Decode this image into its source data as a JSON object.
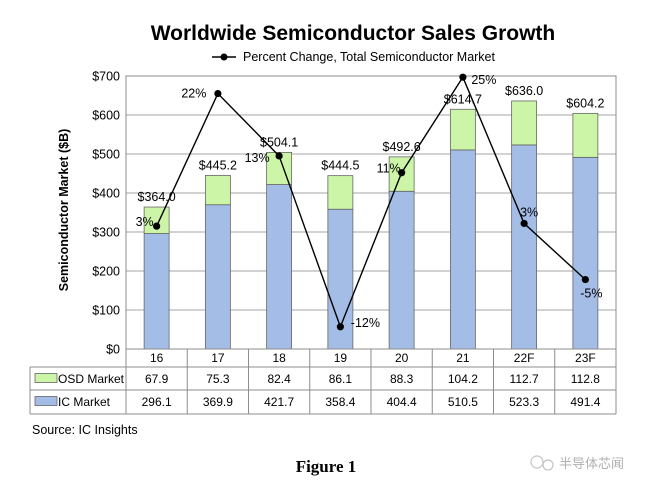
{
  "chart_data": {
    "type": "bar",
    "stacked": true,
    "title": "Worldwide Semiconductor Sales Growth",
    "ylabel": "Semiconductor Market ($B)",
    "xlabel": "",
    "ylim": [
      0,
      700
    ],
    "yticks": [
      0,
      100,
      200,
      300,
      400,
      500,
      600,
      700
    ],
    "ytick_labels": [
      "$0",
      "$100",
      "$200",
      "$300",
      "$400",
      "$500",
      "$600",
      "$700"
    ],
    "grid": "horizontal",
    "categories": [
      "16",
      "17",
      "18",
      "19",
      "20",
      "21",
      "22F",
      "23F"
    ],
    "series": [
      {
        "name": "IC Market",
        "color": "#a4bde6",
        "values": [
          296.1,
          369.9,
          421.7,
          358.4,
          404.4,
          510.5,
          523.3,
          491.4
        ]
      },
      {
        "name": "OSD Market",
        "color": "#ccf5a8",
        "values": [
          67.9,
          75.3,
          82.4,
          86.1,
          88.3,
          104.2,
          112.7,
          112.8
        ]
      }
    ],
    "totals": [
      364.0,
      445.2,
      504.1,
      444.5,
      492.6,
      614.7,
      636.0,
      604.2
    ],
    "total_labels": [
      "$364.0",
      "$445.2",
      "$504.1",
      "$444.5",
      "$492.6",
      "$614.7",
      "$636.0",
      "$604.2"
    ],
    "line_series": {
      "name": "Percent Change, Total Semiconductor Market",
      "values": [
        3,
        22,
        13,
        -12,
        11,
        25,
        3,
        -5
      ],
      "labels": [
        "3%",
        "22%",
        "13%",
        "-12%",
        "11%",
        "25%",
        "3%",
        "-5%"
      ],
      "display_positions": [
        315,
        655,
        495,
        57,
        452,
        697,
        322,
        178
      ]
    },
    "legend": "top-center",
    "table": {
      "rows": [
        {
          "label": "OSD Market",
          "values": [
            "67.9",
            "75.3",
            "82.4",
            "86.1",
            "88.3",
            "104.2",
            "112.7",
            "112.8"
          ]
        },
        {
          "label": "IC Market",
          "values": [
            "296.1",
            "369.9",
            "421.7",
            "358.4",
            "404.4",
            "510.5",
            "523.3",
            "491.4"
          ]
        }
      ]
    }
  },
  "source": "Source: IC Insights",
  "figure_caption": "Figure 1",
  "watermark": "半导体芯闻"
}
